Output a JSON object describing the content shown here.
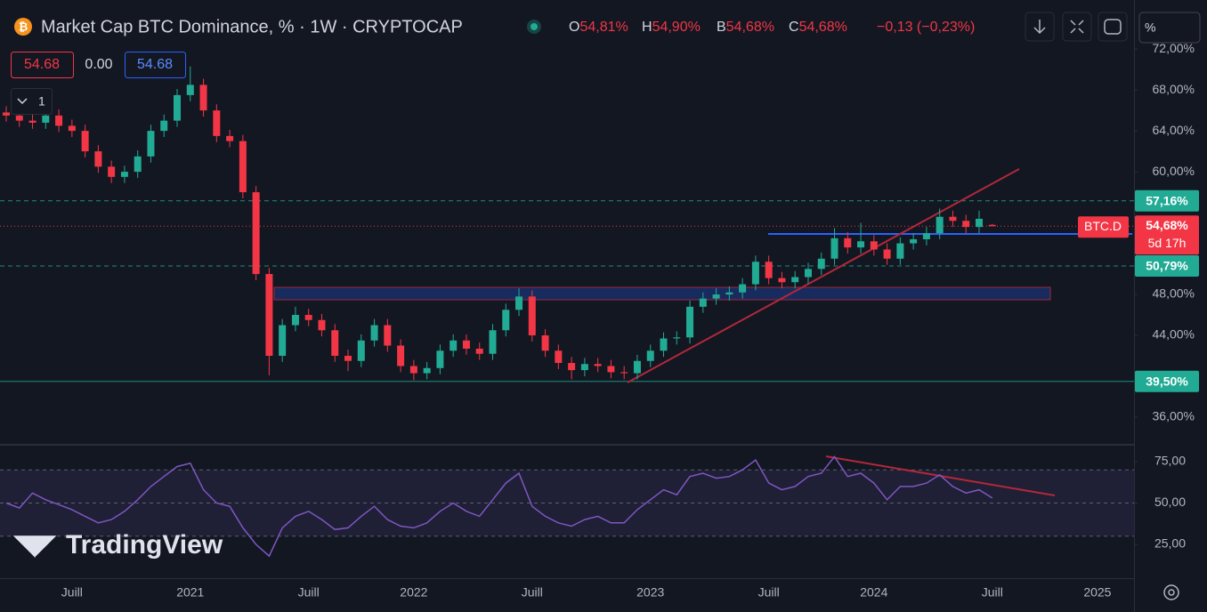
{
  "chart_data": [
    {
      "type": "candlestick",
      "title": "Market Cap BTC Dominance, % · 1W · CRYPTOCAP",
      "legend_items": [
        {
          "key": "O",
          "value": "54,81%"
        },
        {
          "key": "H",
          "value": "54,90%"
        },
        {
          "key": "B",
          "value": "54,68%"
        },
        {
          "key": "C",
          "value": "54,68%"
        }
      ],
      "change": "−0,13 (−0,23%)",
      "up_color": "#22ab94",
      "down_color": "#f23645",
      "categories": [
        null,
        null,
        null,
        null,
        null,
        "Juill",
        null,
        null,
        null,
        null,
        null,
        null,
        null,
        null,
        "2021",
        null,
        null,
        null,
        null,
        null,
        null,
        null,
        null,
        "Juill",
        null,
        null,
        null,
        null,
        null,
        null,
        null,
        "2022",
        null,
        null,
        null,
        null,
        null,
        null,
        null,
        null,
        "Juill",
        null,
        null,
        null,
        null,
        null,
        null,
        null,
        null,
        "2023",
        null,
        null,
        null,
        null,
        null,
        null,
        null,
        null,
        "Juill",
        null,
        null,
        null,
        null,
        null,
        null,
        null,
        "2024",
        null,
        null,
        null,
        null,
        null,
        null,
        null,
        null,
        "Juill",
        null,
        null,
        null,
        null,
        null,
        null,
        null,
        "2025",
        null,
        null,
        null
      ],
      "open": [
        65.8,
        65.5,
        65,
        64.8,
        65.5,
        64.5,
        64,
        62,
        60.5,
        59.5,
        60,
        61.5,
        64,
        65,
        67.5,
        68.5,
        66,
        63.5,
        63,
        58,
        50,
        42,
        45,
        46,
        45.5,
        44.5,
        42,
        41.5,
        43.5,
        45,
        43,
        41,
        40.3,
        40.8,
        42.5,
        43.5,
        42.7,
        42.2,
        44.5,
        46.5,
        47.8,
        44,
        42.5,
        41.3,
        40.6,
        41.2,
        41,
        40.4,
        40.3,
        41.5,
        42.5,
        43.7,
        43.8,
        46.8,
        47.6,
        48,
        48.2,
        49,
        51.2,
        49.6,
        49.2,
        49.7,
        50.5,
        51.5,
        53.5,
        52.6,
        53.2,
        52.4,
        51.5,
        53,
        53.4,
        54,
        55.6,
        55.2,
        54.6,
        54.81,
        null,
        null,
        null,
        null,
        null,
        null,
        null,
        null,
        null,
        null,
        null
      ],
      "high": [
        66.4,
        66.1,
        65.6,
        66.1,
        66.1,
        65.1,
        64.6,
        62.6,
        61.1,
        60.6,
        62.1,
        64.6,
        65.6,
        68.1,
        70.3,
        69.1,
        66.6,
        64.1,
        63.6,
        58.6,
        50.6,
        45.6,
        46.8,
        46.6,
        46.1,
        45.1,
        42.6,
        44.1,
        45.6,
        45.6,
        43.6,
        41.6,
        41.4,
        43.1,
        44.1,
        44.1,
        43.3,
        45.1,
        47.1,
        48.6,
        48.4,
        44.6,
        43.1,
        41.9,
        41.8,
        41.8,
        41.6,
        41,
        42.1,
        43.1,
        44.3,
        44.4,
        47.4,
        48.2,
        48.6,
        48.8,
        49.6,
        51.8,
        51.8,
        50.2,
        50.3,
        51.1,
        52.1,
        54.5,
        54.1,
        55,
        53.8,
        53,
        53.6,
        54,
        54.6,
        56.4,
        56.2,
        55.8,
        56.2,
        54.9,
        null,
        null,
        null,
        null,
        null,
        null,
        null,
        null,
        null,
        null,
        null
      ],
      "low": [
        64.9,
        64.4,
        64.2,
        64.2,
        63.9,
        63.4,
        61.4,
        59.9,
        58.9,
        58.9,
        59.4,
        60.9,
        63.4,
        64.4,
        66.9,
        65.4,
        62.9,
        62.4,
        57.4,
        49.4,
        40.1,
        41.4,
        44.4,
        44.9,
        43.9,
        41.4,
        40.5,
        40.9,
        42.9,
        42.4,
        40.4,
        39.6,
        39.7,
        40.2,
        41.9,
        42.1,
        41.6,
        41.6,
        43.9,
        45.9,
        43.4,
        41.9,
        40.7,
        39.7,
        40,
        40.4,
        39.8,
        39.7,
        39.7,
        40.9,
        41.9,
        43.1,
        43.2,
        46.2,
        47,
        47.4,
        47.6,
        48.4,
        49,
        48.6,
        48.6,
        49.1,
        49.9,
        50.9,
        52,
        52,
        51.8,
        50.9,
        50.9,
        52.4,
        52.8,
        53.4,
        54.6,
        54,
        54,
        54.68,
        null,
        null,
        null,
        null,
        null,
        null,
        null,
        null,
        null,
        null,
        null
      ],
      "close": [
        65.5,
        65,
        64.8,
        65.5,
        64.5,
        64,
        62,
        60.5,
        59.5,
        60,
        61.5,
        64,
        65,
        67.5,
        68.5,
        66,
        63.5,
        63,
        58,
        50,
        42,
        45,
        46,
        45.5,
        44.5,
        42,
        41.5,
        43.5,
        45,
        43,
        41,
        40.3,
        40.8,
        42.5,
        43.5,
        42.7,
        42.2,
        44.5,
        46.5,
        47.8,
        44,
        42.5,
        41.3,
        40.6,
        41.2,
        41,
        40.4,
        40.3,
        41.5,
        42.5,
        43.7,
        43.8,
        46.8,
        47.6,
        48,
        48.2,
        49,
        51.2,
        49.6,
        49.2,
        49.7,
        50.5,
        51.5,
        53.5,
        52.6,
        53.2,
        52.4,
        51.5,
        53,
        53.4,
        54,
        55.6,
        55.2,
        54.6,
        55.4,
        54.68,
        null,
        null,
        null,
        null,
        null,
        null,
        null,
        null,
        null,
        null,
        null
      ],
      "ylim": [
        33.3,
        76.8
      ],
      "yticks": [
        {
          "value": 36,
          "label": "36,00%"
        },
        {
          "value": 44,
          "label": "44,00%"
        },
        {
          "value": 48,
          "label": "48,00%"
        },
        {
          "value": 60,
          "label": "60,00%"
        },
        {
          "value": 64,
          "label": "64,00%"
        },
        {
          "value": 68,
          "label": "68,00%"
        },
        {
          "value": 72,
          "label": "72,00%"
        }
      ],
      "levels": [
        {
          "value": 57.16,
          "label": "57,16%",
          "color": "#22ab94",
          "style": "dashed"
        },
        {
          "value": 50.79,
          "label": "50,79%",
          "color": "#22ab94",
          "style": "dashed"
        },
        {
          "value": 39.5,
          "label": "39,50%",
          "color": "#22ab94",
          "style": "solid"
        }
      ],
      "current": {
        "name": "BTC.D",
        "value": 54.68,
        "label": "54,68%",
        "countdown": "5d 17h",
        "color": "#f23645"
      }
    },
    {
      "type": "line",
      "color": "#7e57c2",
      "values": [
        50,
        47,
        56,
        52,
        49,
        46,
        42,
        38,
        40,
        45,
        52,
        60,
        66,
        72,
        74,
        58,
        50,
        48,
        35,
        25,
        18,
        35,
        42,
        45,
        40,
        34,
        35,
        42,
        48,
        40,
        36,
        35,
        38,
        45,
        50,
        45,
        42,
        52,
        62,
        68,
        48,
        42,
        38,
        36,
        40,
        42,
        38,
        38,
        46,
        52,
        58,
        55,
        66,
        68,
        65,
        66,
        70,
        76,
        62,
        58,
        60,
        66,
        68,
        78,
        66,
        68,
        62,
        52,
        60,
        60,
        62,
        67,
        60,
        56,
        58,
        53,
        null,
        null,
        null,
        null,
        null,
        null,
        null,
        null,
        null,
        null,
        null
      ],
      "ylim": [
        4.6,
        84.1
      ],
      "yticks": [
        {
          "value": 75,
          "label": "75,00"
        },
        {
          "value": 50,
          "label": "50,00"
        },
        {
          "value": 25,
          "label": "25,00"
        }
      ],
      "levels": [
        70,
        50,
        30
      ]
    }
  ],
  "toolbar": {
    "indicator_values": [
      "54.68",
      "0.00",
      "54.68"
    ],
    "collapse": "1",
    "scale": "%",
    "watermark": "TradingView"
  }
}
